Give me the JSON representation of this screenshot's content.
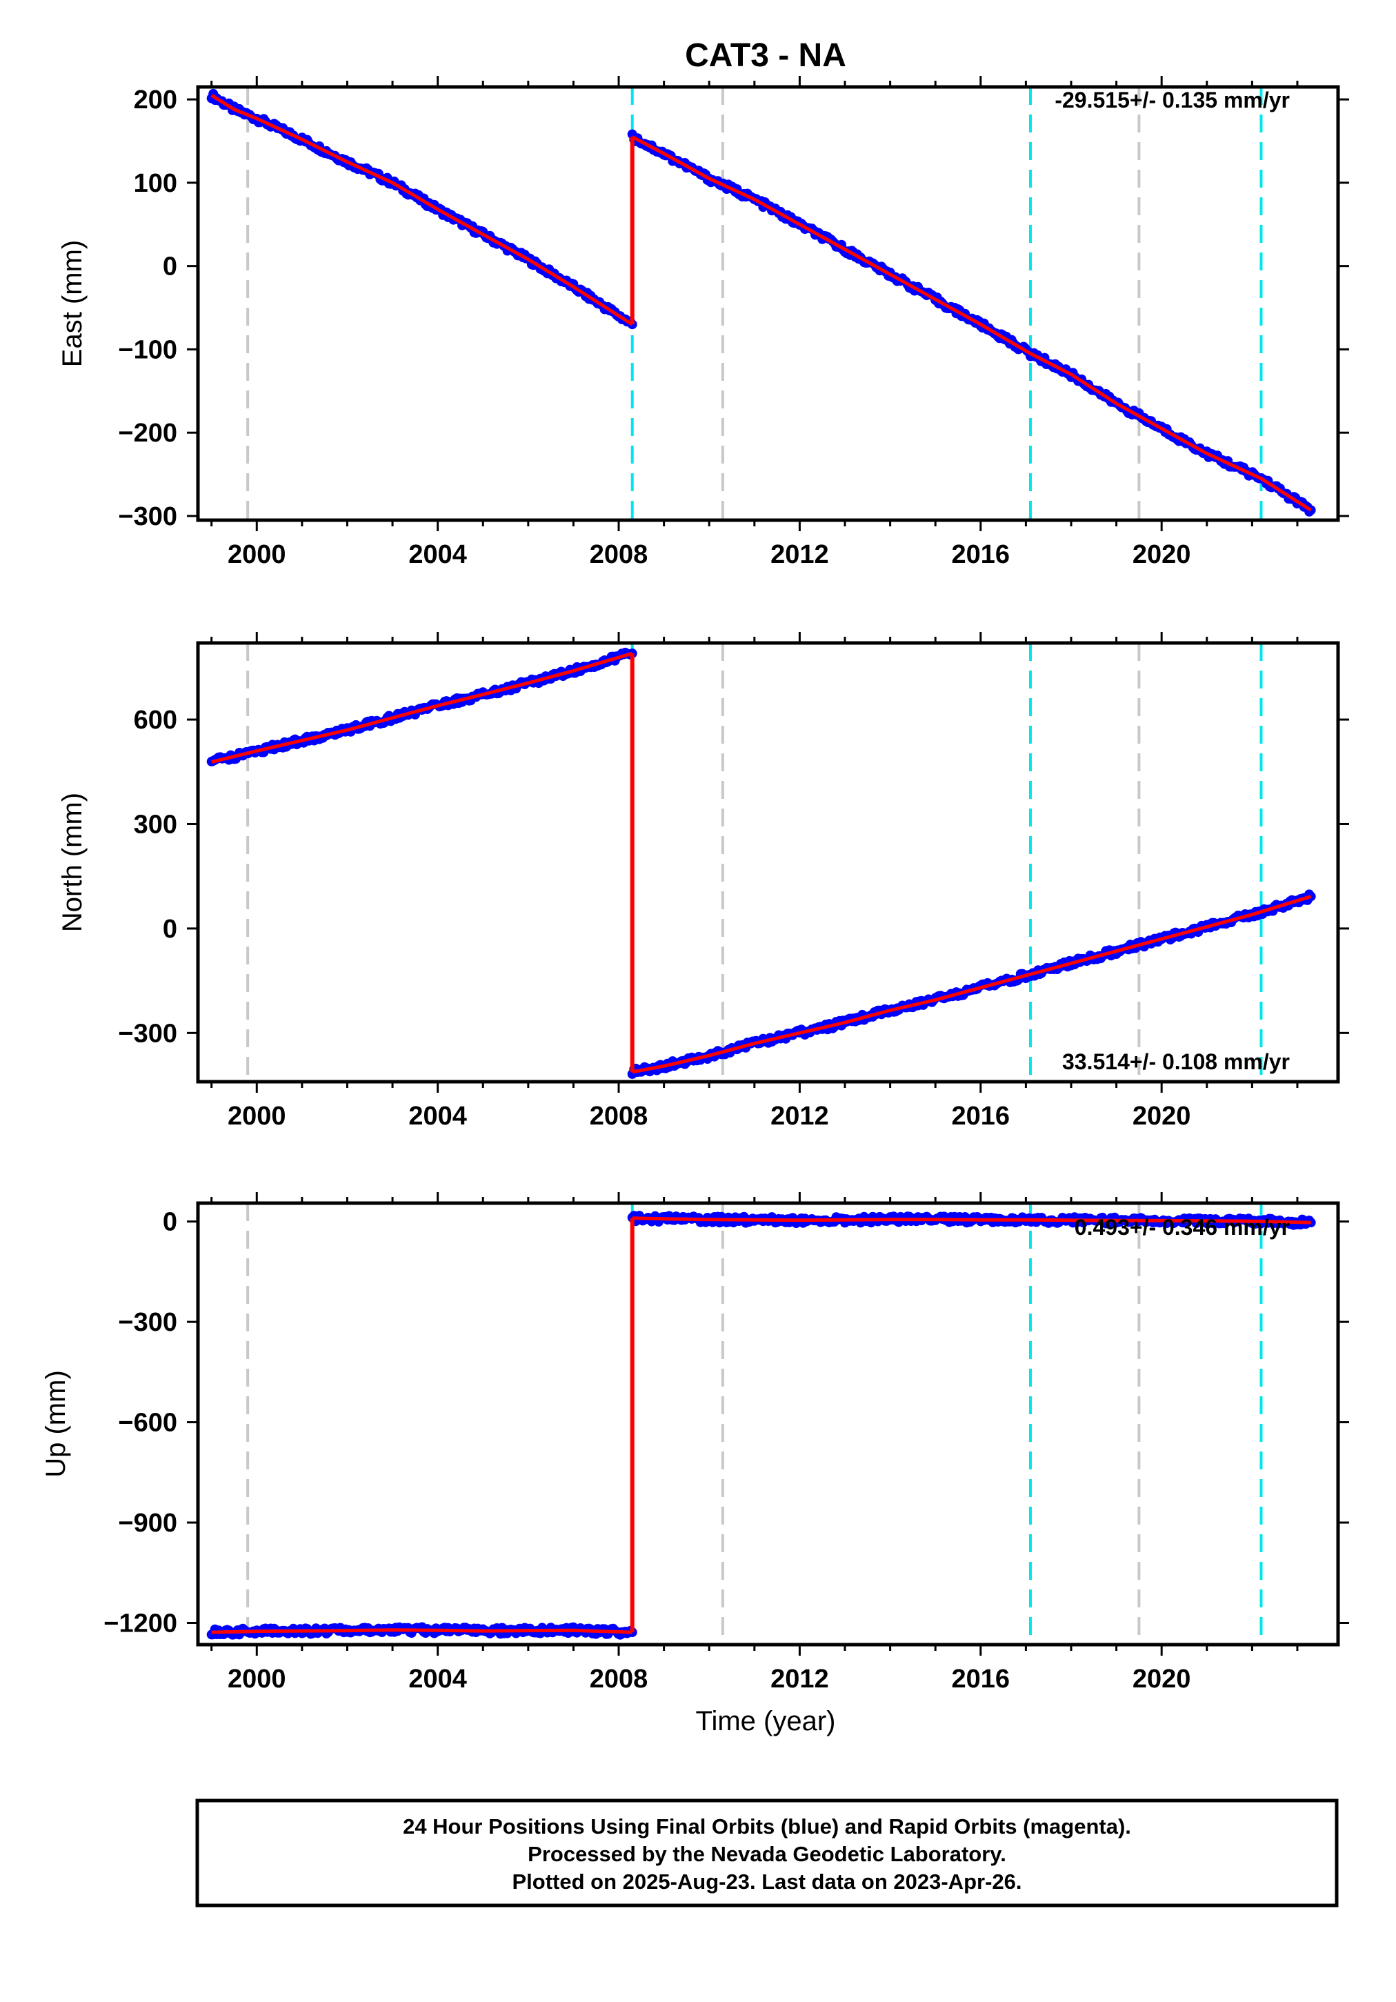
{
  "figure": {
    "title": "CAT3 - NA",
    "xlabel": "Time (year)",
    "footer": [
      "24 Hour Positions Using Final Orbits (blue) and Rapid Orbits (magenta).",
      "Processed by the Nevada Geodetic Laboratory.",
      "Plotted on 2025-Aug-23. Last data on 2023-Apr-26."
    ],
    "colors": {
      "final_orbits": "#0000ff",
      "model_fit": "#ff0000",
      "equipment_change": "#00e5ee",
      "other_event": "#c8c8c8"
    }
  },
  "chart_data": [
    {
      "type": "scatter",
      "component": "east",
      "ylabel": "East (mm)",
      "rate_label": "-29.515+/- 0.135 mm/yr",
      "xlim": [
        1998.7,
        2023.9
      ],
      "ylim": [
        -305,
        215
      ],
      "xticks": [
        2000,
        2004,
        2008,
        2012,
        2016,
        2020
      ],
      "yticks": [
        200,
        100,
        0,
        -100,
        -200,
        -300
      ],
      "ytick_labels": [
        "200",
        "100",
        "0",
        "−100",
        "−200",
        "−300"
      ],
      "event_lines": {
        "cyan": [
          2008.3,
          2017.1,
          2022.2
        ],
        "gray": [
          1999.8,
          2010.3,
          2019.5
        ]
      },
      "series": [
        {
          "x": [
            1999.0,
            1999.5,
            2000.0,
            2001.0,
            2002.0,
            2003.0,
            2004.0,
            2005.0,
            2006.0,
            2007.0,
            2008.3
          ],
          "y": [
            205,
            188,
            177,
            152,
            125,
            100,
            68,
            38,
            8,
            -25,
            -70
          ]
        },
        {
          "x": [
            2008.3,
            2009.0,
            2010.0,
            2011.0,
            2012.0,
            2013.0,
            2014.0,
            2015.0,
            2016.0,
            2017.1,
            2018.0,
            2019.0,
            2020.0,
            2021.0,
            2022.2,
            2023.3
          ],
          "y": [
            155,
            135,
            105,
            80,
            50,
            20,
            -10,
            -40,
            -70,
            -105,
            -130,
            -165,
            -195,
            -225,
            -255,
            -293
          ]
        }
      ],
      "fit_steps": [
        [
          2008.3,
          -70,
          155
        ]
      ]
    },
    {
      "type": "scatter",
      "component": "north",
      "ylabel": "North (mm)",
      "rate_label": "33.514+/- 0.108 mm/yr",
      "xlim": [
        1998.7,
        2023.9
      ],
      "ylim": [
        -440,
        820
      ],
      "xticks": [
        2000,
        2004,
        2008,
        2012,
        2016,
        2020
      ],
      "yticks": [
        600,
        300,
        0,
        -300
      ],
      "ytick_labels": [
        "600",
        "300",
        "0",
        "−300"
      ],
      "event_lines": {
        "cyan": [
          2008.3,
          2017.1,
          2022.2
        ],
        "gray": [
          1999.8,
          2010.3,
          2019.5
        ]
      },
      "series": [
        {
          "x": [
            1999.0,
            2000.0,
            2001.0,
            2002.0,
            2003.0,
            2004.0,
            2005.0,
            2006.0,
            2007.0,
            2008.3
          ],
          "y": [
            478,
            510,
            540,
            570,
            605,
            640,
            672,
            705,
            740,
            790
          ]
        },
        {
          "x": [
            2008.3,
            2009.0,
            2010.0,
            2011.0,
            2012.0,
            2013.0,
            2014.0,
            2015.0,
            2016.0,
            2017.0,
            2018.0,
            2019.0,
            2020.0,
            2021.0,
            2022.0,
            2023.3
          ],
          "y": [
            -412,
            -395,
            -365,
            -330,
            -300,
            -270,
            -235,
            -205,
            -170,
            -135,
            -100,
            -65,
            -30,
            5,
            40,
            92
          ]
        }
      ],
      "fit_steps": [
        [
          2008.3,
          790,
          -412
        ]
      ]
    },
    {
      "type": "scatter",
      "component": "up",
      "ylabel": "Up (mm)",
      "rate_label": "0.493+/- 0.346 mm/yr",
      "xlim": [
        1998.7,
        2023.9
      ],
      "ylim": [
        -1265,
        55
      ],
      "xticks": [
        2000,
        2004,
        2008,
        2012,
        2016,
        2020
      ],
      "yticks": [
        0,
        -300,
        -600,
        -900,
        -1200
      ],
      "ytick_labels": [
        "0",
        "−300",
        "−600",
        "−900",
        "−1200"
      ],
      "event_lines": {
        "cyan": [
          2008.3,
          2017.1,
          2022.2
        ],
        "gray": [
          1999.8,
          2010.3,
          2019.5
        ]
      },
      "series": [
        {
          "x": [
            1999.0,
            2000.0,
            2001.0,
            2002.0,
            2003.0,
            2004.0,
            2005.0,
            2006.0,
            2007.0,
            2008.3
          ],
          "y": [
            -1228,
            -1225,
            -1224,
            -1223,
            -1221,
            -1222,
            -1224,
            -1223,
            -1222,
            -1228
          ]
        },
        {
          "x": [
            2008.3,
            2009.0,
            2010.0,
            2011.0,
            2012.0,
            2013.0,
            2014.0,
            2015.0,
            2016.0,
            2017.0,
            2018.0,
            2019.0,
            2020.0,
            2021.0,
            2022.0,
            2023.3
          ],
          "y": [
            10,
            8,
            6,
            5,
            4,
            5,
            6,
            6,
            5,
            5,
            4,
            3,
            3,
            2,
            1,
            -3
          ]
        }
      ],
      "fit_steps": [
        [
          2008.3,
          -1228,
          10
        ]
      ]
    }
  ]
}
